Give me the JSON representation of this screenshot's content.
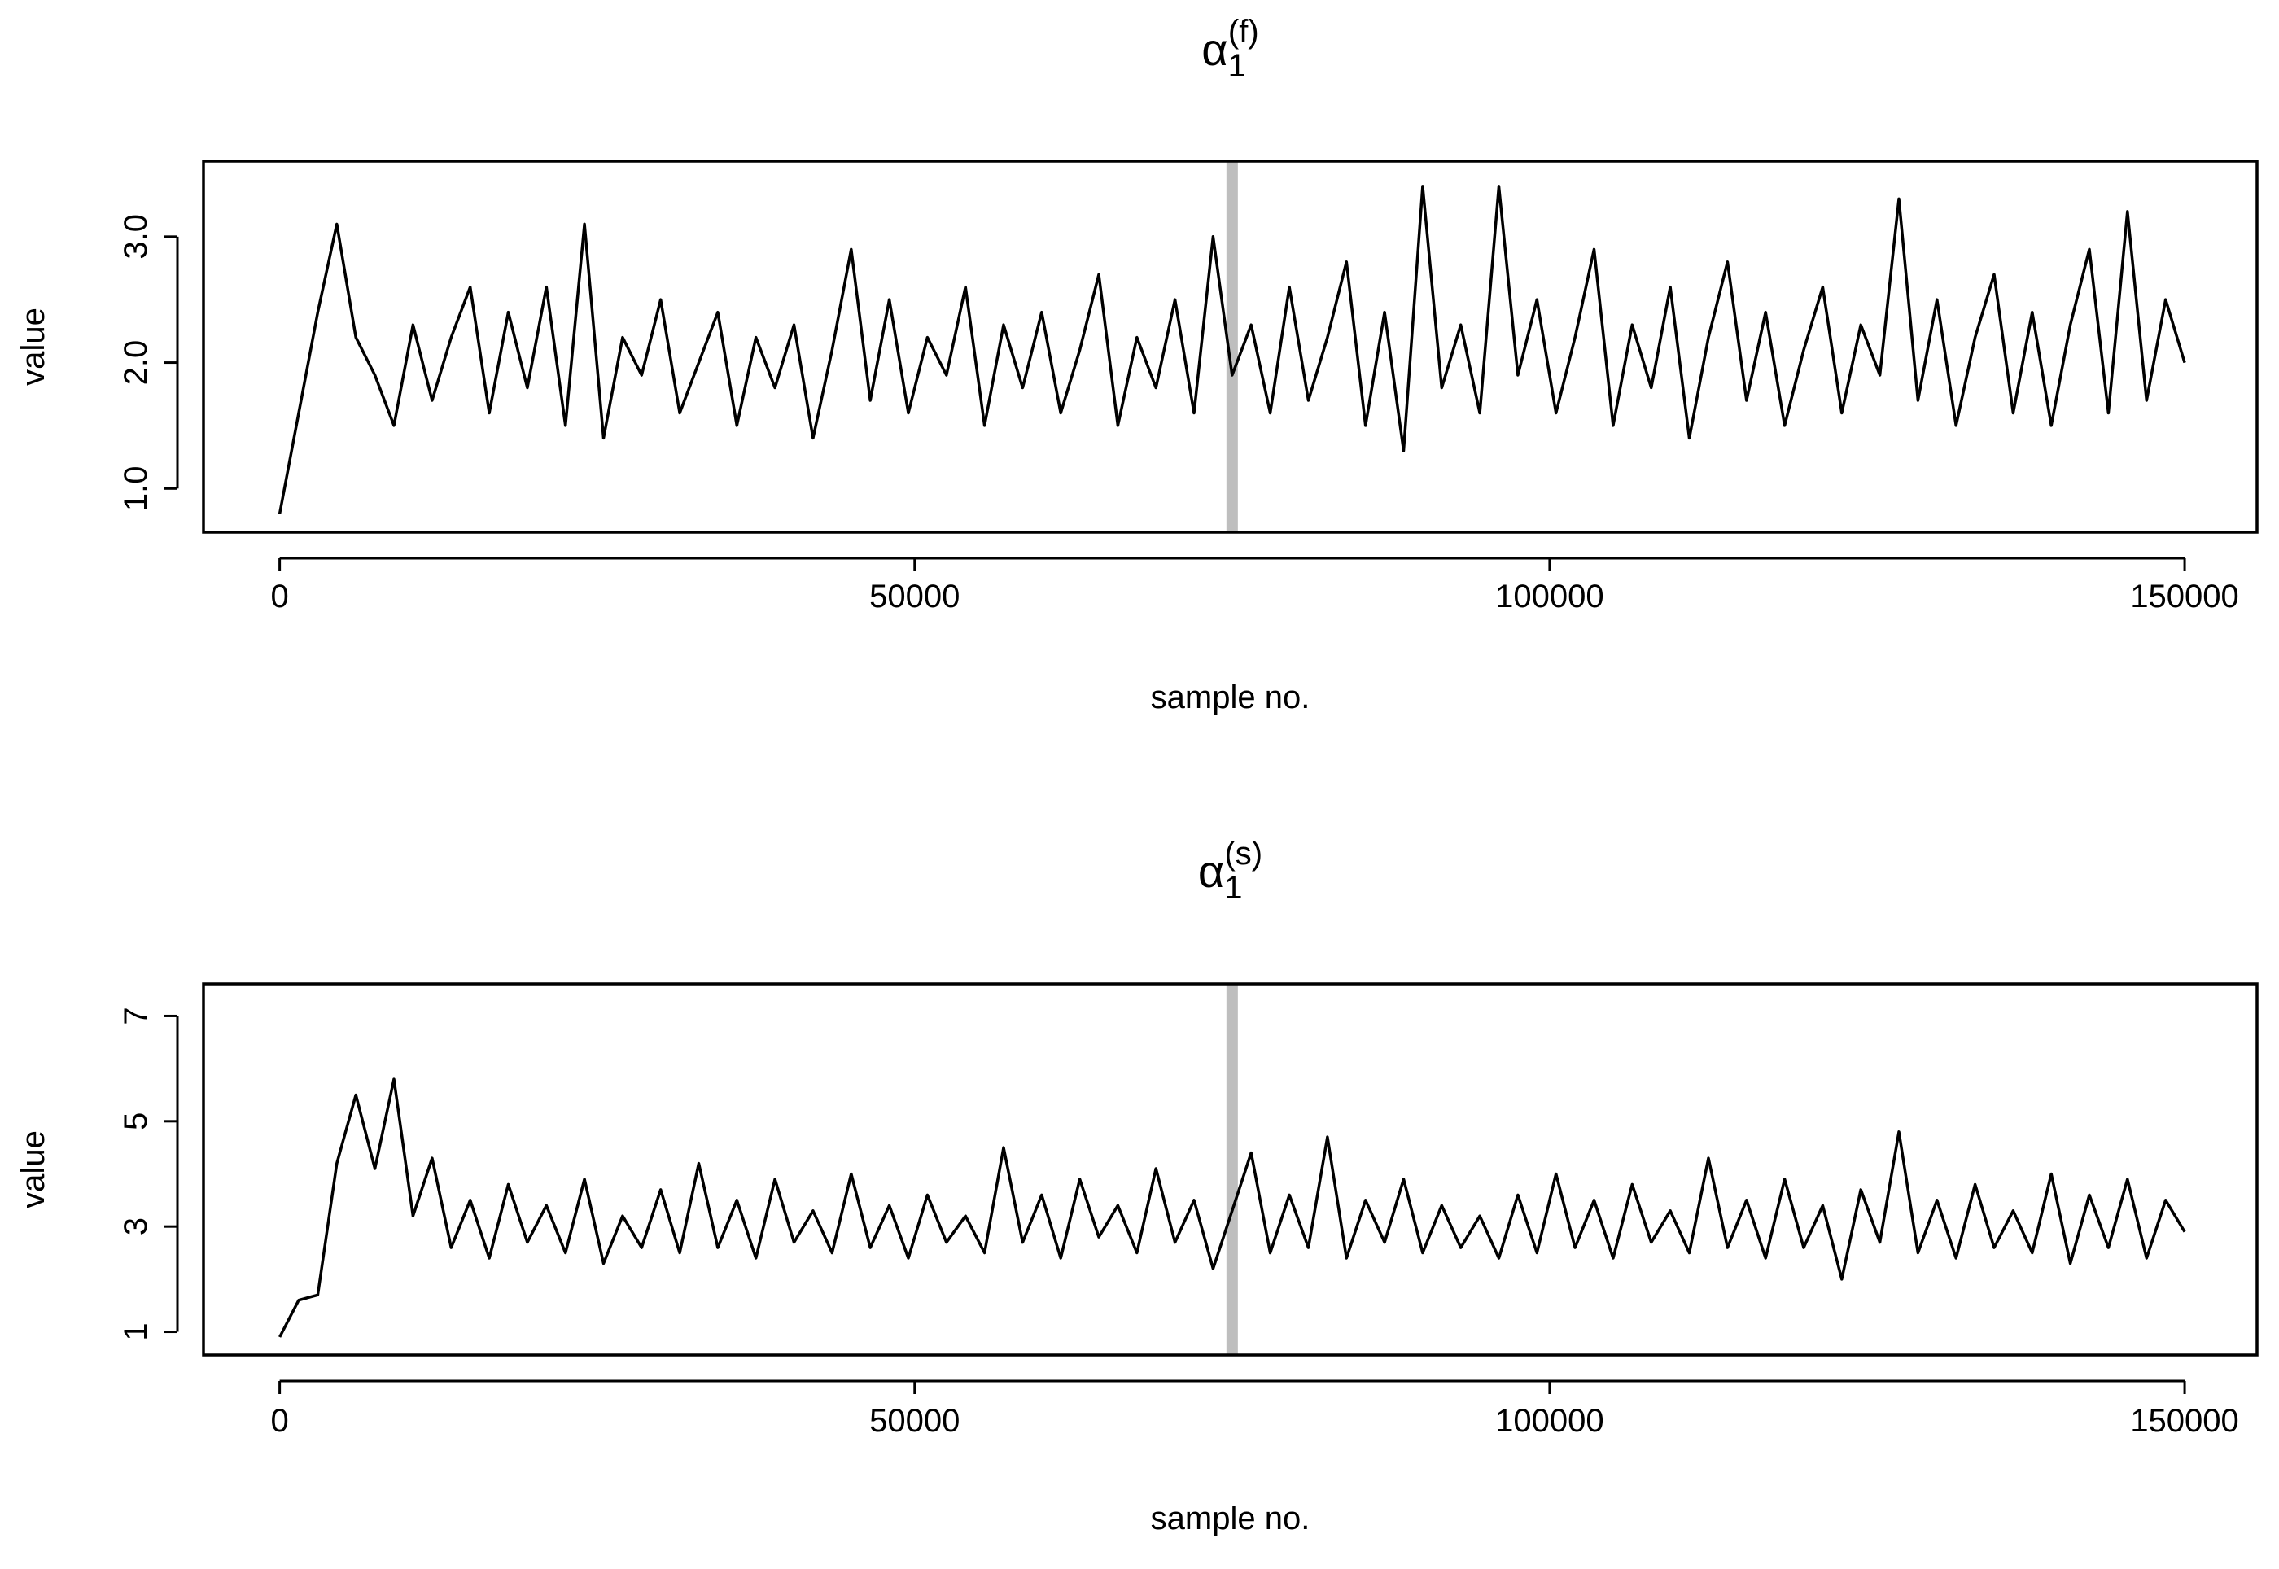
{
  "chart_data": [
    {
      "type": "line",
      "title": {
        "base": "α",
        "sub": "1",
        "sup": "(f)"
      },
      "xlabel": "sample no.",
      "ylabel": "value",
      "x": [
        0,
        1500,
        3000,
        4500,
        6000,
        7500,
        9000,
        10500,
        12000,
        13500,
        15000,
        16500,
        18000,
        19500,
        21000,
        22500,
        24000,
        25500,
        27000,
        28500,
        30000,
        31500,
        33000,
        34500,
        36000,
        37500,
        39000,
        40500,
        42000,
        43500,
        45000,
        46500,
        48000,
        49500,
        51000,
        52500,
        54000,
        55500,
        57000,
        58500,
        60000,
        61500,
        63000,
        64500,
        66000,
        67500,
        69000,
        70500,
        72000,
        73500,
        75000,
        76500,
        78000,
        79500,
        81000,
        82500,
        84000,
        85500,
        87000,
        88500,
        90000,
        91500,
        93000,
        94500,
        96000,
        97500,
        99000,
        100500,
        102000,
        103500,
        105000,
        106500,
        108000,
        109500,
        111000,
        112500,
        114000,
        115500,
        117000,
        118500,
        120000,
        121500,
        123000,
        124500,
        126000,
        127500,
        129000,
        130500,
        132000,
        133500,
        135000,
        136500,
        138000,
        139500,
        141000,
        142500,
        144000,
        145500,
        147000,
        148500,
        150000
      ],
      "values": [
        0.8,
        1.6,
        2.4,
        3.1,
        2.2,
        1.9,
        1.5,
        2.3,
        1.7,
        2.2,
        2.6,
        1.6,
        2.4,
        1.8,
        2.6,
        1.5,
        3.1,
        1.4,
        2.2,
        1.9,
        2.5,
        1.6,
        2.0,
        2.4,
        1.5,
        2.2,
        1.8,
        2.3,
        1.4,
        2.1,
        2.9,
        1.7,
        2.5,
        1.6,
        2.2,
        1.9,
        2.6,
        1.5,
        2.3,
        1.8,
        2.4,
        1.6,
        2.1,
        2.7,
        1.5,
        2.2,
        1.8,
        2.5,
        1.6,
        3.0,
        1.9,
        2.3,
        1.6,
        2.6,
        1.7,
        2.2,
        2.8,
        1.5,
        2.4,
        1.3,
        3.4,
        1.8,
        2.3,
        1.6,
        3.4,
        1.9,
        2.5,
        1.6,
        2.2,
        2.9,
        1.5,
        2.3,
        1.8,
        2.6,
        1.4,
        2.2,
        2.8,
        1.7,
        2.4,
        1.5,
        2.1,
        2.6,
        1.6,
        2.3,
        1.9,
        3.3,
        1.7,
        2.5,
        1.5,
        2.2,
        2.7,
        1.6,
        2.4,
        1.5,
        2.3,
        2.9,
        1.6,
        3.2,
        1.7,
        2.5,
        2.0
      ],
      "color": "#000000",
      "vline": 75000,
      "vline_color": "#bebebe",
      "xlim": [
        -6000,
        155700
      ],
      "ylim": [
        0.653,
        3.6
      ],
      "xticks": [
        0,
        50000,
        100000,
        150000
      ],
      "yticks": [
        {
          "value": 1,
          "label": "1.0"
        },
        {
          "value": 2,
          "label": "2.0"
        },
        {
          "value": 3,
          "label": "3.0"
        }
      ]
    },
    {
      "type": "line",
      "title": {
        "base": "α",
        "sub": "1",
        "sup": "(s)"
      },
      "xlabel": "sample no.",
      "ylabel": "value",
      "x": [
        0,
        1500,
        3000,
        4500,
        6000,
        7500,
        9000,
        10500,
        12000,
        13500,
        15000,
        16500,
        18000,
        19500,
        21000,
        22500,
        24000,
        25500,
        27000,
        28500,
        30000,
        31500,
        33000,
        34500,
        36000,
        37500,
        39000,
        40500,
        42000,
        43500,
        45000,
        46500,
        48000,
        49500,
        51000,
        52500,
        54000,
        55500,
        57000,
        58500,
        60000,
        61500,
        63000,
        64500,
        66000,
        67500,
        69000,
        70500,
        72000,
        73500,
        75000,
        76500,
        78000,
        79500,
        81000,
        82500,
        84000,
        85500,
        87000,
        88500,
        90000,
        91500,
        93000,
        94500,
        96000,
        97500,
        99000,
        100500,
        102000,
        103500,
        105000,
        106500,
        108000,
        109500,
        111000,
        112500,
        114000,
        115500,
        117000,
        118500,
        120000,
        121500,
        123000,
        124500,
        126000,
        127500,
        129000,
        130500,
        132000,
        133500,
        135000,
        136500,
        138000,
        139500,
        141000,
        142500,
        144000,
        145500,
        147000,
        148500,
        150000
      ],
      "values": [
        0.9,
        1.6,
        1.7,
        4.2,
        5.5,
        4.1,
        5.8,
        3.2,
        4.3,
        2.6,
        3.5,
        2.4,
        3.8,
        2.7,
        3.4,
        2.5,
        3.9,
        2.3,
        3.2,
        2.6,
        3.7,
        2.5,
        4.2,
        2.6,
        3.5,
        2.4,
        3.9,
        2.7,
        3.3,
        2.5,
        4.0,
        2.6,
        3.4,
        2.4,
        3.6,
        2.7,
        3.2,
        2.5,
        4.5,
        2.7,
        3.6,
        2.4,
        3.9,
        2.8,
        3.4,
        2.5,
        4.1,
        2.7,
        3.5,
        2.2,
        3.3,
        4.4,
        2.5,
        3.6,
        2.6,
        4.7,
        2.4,
        3.5,
        2.7,
        3.9,
        2.5,
        3.4,
        2.6,
        3.2,
        2.4,
        3.6,
        2.5,
        4.0,
        2.6,
        3.5,
        2.4,
        3.8,
        2.7,
        3.3,
        2.5,
        4.3,
        2.6,
        3.5,
        2.4,
        3.9,
        2.6,
        3.4,
        2.0,
        3.7,
        2.7,
        4.8,
        2.5,
        3.5,
        2.4,
        3.8,
        2.6,
        3.3,
        2.5,
        4.0,
        2.3,
        3.6,
        2.6,
        3.9,
        2.4,
        3.5,
        2.9
      ],
      "color": "#000000",
      "vline": 75000,
      "vline_color": "#bebebe",
      "xlim": [
        -6000,
        155700
      ],
      "ylim": [
        0.56,
        7.61
      ],
      "xticks": [
        0,
        50000,
        100000,
        150000
      ],
      "yticks": [
        1,
        3,
        5,
        7
      ]
    }
  ]
}
